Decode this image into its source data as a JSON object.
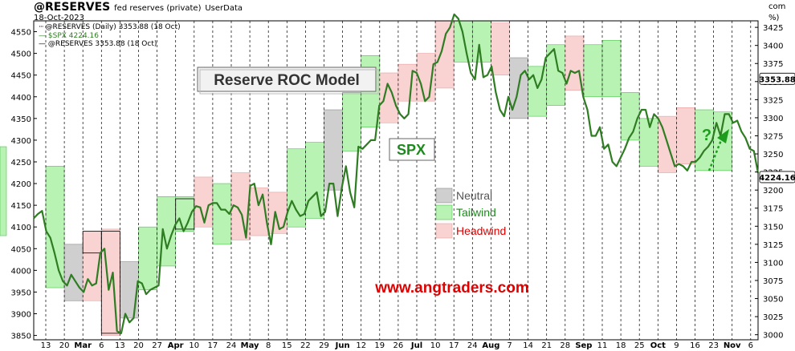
{
  "header": {
    "symbol": "@RESERVES",
    "description": "fed reserves (private)",
    "source": "UserData",
    "date": "18-Oct-2023",
    "right_top": "com",
    "right_pct": "%)",
    "legend_reserves": "@RESERVES (Daily) 3353.88 (18 Oct)",
    "legend_spx": "$SPX 4224.16",
    "legend_reserves2": "@RESERVES 3353.88 (18 Oct)"
  },
  "annotations": {
    "model_title": "Reserve ROC Model",
    "spx_label": "SPX",
    "question_mark": "?",
    "website": "www.angtraders.com"
  },
  "legend": {
    "neutral": "Neutral",
    "tailwind": "Tailwind",
    "headwind": "Headwind"
  },
  "colors": {
    "tailwind_fill": "#b9f3b4",
    "tailwind_edge": "#49c549",
    "headwind_fill": "#f9d2d2",
    "headwind_edge": "#e7a0a0",
    "neutral_fill": "#cfcfcf",
    "neutral_edge": "#8c8c8c",
    "spx_line": "#2f7d22",
    "arrow": "#1e9c1e",
    "website": "#e00000",
    "headwind_text": "#e00000",
    "tailwind_text": "#1d8a1d"
  },
  "chart_data": {
    "type": "line",
    "title": "@RESERVES fed reserves (private) UserData",
    "x_ticks": [
      "13",
      "20",
      "Mar",
      "6",
      "13",
      "20",
      "27",
      "Apr",
      "10",
      "17",
      "24",
      "May",
      "8",
      "15",
      "22",
      "29",
      "Jun",
      "12",
      "19",
      "26",
      "Jul",
      "10",
      "17",
      "24",
      "Aug",
      "7",
      "14",
      "21",
      "28",
      "Sep",
      "11",
      "18",
      "25",
      "Oct",
      "9",
      "16",
      "23",
      "Nov",
      "6"
    ],
    "y_left_ticks": [
      3850,
      3900,
      3950,
      4000,
      4050,
      4100,
      4150,
      4200,
      4250,
      4300,
      4350,
      4400,
      4450,
      4500,
      4550
    ],
    "y_right_ticks": [
      3000,
      3025,
      3050,
      3075,
      3100,
      3125,
      3150,
      3175,
      3200,
      3225,
      3250,
      3275,
      3300,
      3325,
      3350,
      3375,
      3400,
      3425
    ],
    "ylim_left": [
      3840,
      4575
    ],
    "ylim_right": [
      2993,
      3434
    ],
    "last_values": {
      "spx": "4224.16",
      "reserves": "3353.88"
    },
    "series": [
      {
        "name": "$SPX",
        "x": [
          0,
          1,
          2,
          3,
          4,
          5,
          6,
          7,
          8,
          9,
          10,
          11,
          12,
          13,
          14,
          15,
          16,
          17,
          18,
          19,
          20,
          21,
          22,
          23,
          24,
          25,
          26,
          27,
          28,
          29,
          30,
          31,
          32,
          33,
          34,
          35,
          36,
          37,
          38,
          39,
          40,
          41,
          42,
          43,
          44,
          45,
          46,
          47,
          48,
          49,
          50,
          51,
          52,
          53,
          54,
          55,
          56,
          57,
          58,
          59,
          60,
          61,
          62,
          63,
          64,
          65,
          66,
          67,
          68,
          69,
          70,
          71,
          72,
          73,
          74,
          75,
          76,
          77,
          78,
          79,
          80,
          81,
          82,
          83,
          84,
          85,
          86,
          87,
          88,
          89,
          90,
          91,
          92,
          93,
          94,
          95,
          96,
          97,
          98,
          99,
          100,
          101,
          102,
          103,
          104,
          105,
          106,
          107,
          108,
          109,
          110,
          111,
          112,
          113,
          114,
          115,
          116,
          117,
          118,
          119,
          120,
          121,
          122,
          123,
          124,
          125,
          126,
          127,
          128,
          129,
          130,
          131,
          132,
          133,
          134,
          135,
          136,
          137,
          138,
          139,
          140,
          141,
          142,
          143,
          144,
          145,
          146,
          147,
          148,
          149,
          150,
          151,
          152,
          153,
          154,
          155,
          156,
          157,
          158,
          159,
          160,
          161,
          162,
          163,
          164,
          165,
          166,
          167,
          168,
          169,
          170,
          171,
          172,
          173,
          174
        ],
        "values": [
          4120,
          4130,
          4137,
          4090,
          4075,
          4040,
          4000,
          3975,
          3965,
          3990,
          3975,
          3960,
          3950,
          3980,
          3965,
          3970,
          4040,
          4050,
          3955,
          3995,
          3860,
          3855,
          3900,
          3880,
          3890,
          3975,
          3970,
          3945,
          3955,
          3960,
          3965,
          4095,
          4050,
          4080,
          4105,
          4120,
          4090,
          4110,
          4135,
          4148,
          4145,
          4110,
          4150,
          4155,
          4155,
          4140,
          4140,
          4130,
          4150,
          4145,
          4128,
          4075,
          4195,
          4200,
          4150,
          4175,
          4110,
          4060,
          4135,
          4095,
          4100,
          4135,
          4160,
          4140,
          4125,
          4130,
          4160,
          4170,
          4180,
          4125,
          4135,
          4200,
          4200,
          4125,
          4190,
          4240,
          4180,
          4145,
          4285,
          4280,
          4290,
          4300,
          4300,
          4380,
          4390,
          4430,
          4410,
          4380,
          4360,
          4350,
          4360,
          4460,
          4455,
          4430,
          4390,
          4400,
          4475,
          4480,
          4505,
          4545,
          4560,
          4590,
          4580,
          4550,
          4500,
          4455,
          4440,
          4520,
          4445,
          4450,
          4470,
          4410,
          4370,
          4355,
          4400,
          4370,
          4400,
          4450,
          4460,
          4440,
          4450,
          4420,
          4440,
          4490,
          4500,
          4510,
          4460,
          4455,
          4430,
          4460,
          4455,
          4460,
          4400,
          4370,
          4310,
          4310,
          4330,
          4280,
          4290,
          4250,
          4240,
          4260,
          4280,
          4305,
          4320,
          4350,
          4370,
          4370,
          4330,
          4360,
          4350,
          4330,
          4300,
          4270,
          4240,
          4245,
          4240,
          4230,
          4250,
          4250,
          4260,
          4275,
          4285,
          4300,
          4340,
          4310,
          4360,
          4360,
          4340,
          4345,
          4320,
          4305,
          4280,
          4275,
          4224
        ]
      }
    ],
    "regimes": [
      {
        "from": 0,
        "to": 1,
        "type": "tailwind",
        "low": 3960,
        "high": 4240
      },
      {
        "from": 1,
        "to": 2,
        "type": "neutral",
        "low": 3930,
        "high": 4060
      },
      {
        "from": 2,
        "to": 3,
        "type": "headwind",
        "low": 3930,
        "high": 4090
      },
      {
        "from": 3,
        "to": 4,
        "type": "headwind",
        "low": 3850,
        "high": 4095
      },
      {
        "from": 4,
        "to": 5,
        "type": "neutral",
        "low": 3890,
        "high": 4020
      },
      {
        "from": 5,
        "to": 6,
        "type": "tailwind",
        "low": 3955,
        "high": 4100
      },
      {
        "from": 6,
        "to": 7,
        "type": "tailwind",
        "low": 4010,
        "high": 4170
      },
      {
        "from": 7,
        "to": 8,
        "type": "tailwind",
        "low": 4090,
        "high": 4170
      },
      {
        "from": 8,
        "to": 9,
        "type": "headwind",
        "low": 4100,
        "high": 4215
      },
      {
        "from": 9,
        "to": 10,
        "type": "tailwind",
        "low": 4060,
        "high": 4200
      },
      {
        "from": 10,
        "to": 11,
        "type": "headwind",
        "low": 4070,
        "high": 4225
      },
      {
        "from": 11,
        "to": 12,
        "type": "headwind",
        "low": 4080,
        "high": 4190
      },
      {
        "from": 12,
        "to": 13,
        "type": "headwind",
        "low": 4085,
        "high": 4180
      },
      {
        "from": 13,
        "to": 14,
        "type": "tailwind",
        "low": 4100,
        "high": 4280
      },
      {
        "from": 14,
        "to": 15,
        "type": "tailwind",
        "low": 4120,
        "high": 4295
      },
      {
        "from": 15,
        "to": 16,
        "type": "neutral",
        "low": 4185,
        "high": 4370
      },
      {
        "from": 16,
        "to": 17,
        "type": "tailwind",
        "low": 4275,
        "high": 4410
      },
      {
        "from": 17,
        "to": 18,
        "type": "tailwind",
        "low": 4330,
        "high": 4495
      },
      {
        "from": 18,
        "to": 19,
        "type": "headwind",
        "low": 4340,
        "high": 4455
      },
      {
        "from": 19,
        "to": 20,
        "type": "headwind",
        "low": 4390,
        "high": 4475
      },
      {
        "from": 20,
        "to": 21,
        "type": "headwind",
        "low": 4390,
        "high": 4500
      },
      {
        "from": 21,
        "to": 22,
        "type": "headwind",
        "low": 4420,
        "high": 4590
      },
      {
        "from": 22,
        "to": 23,
        "type": "tailwind",
        "low": 4480,
        "high": 4600
      },
      {
        "from": 23,
        "to": 24,
        "type": "tailwind",
        "low": 4480,
        "high": 4590
      },
      {
        "from": 24,
        "to": 25,
        "type": "headwind",
        "low": 4450,
        "high": 4570
      },
      {
        "from": 25,
        "to": 26,
        "type": "neutral",
        "low": 4350,
        "high": 4490
      },
      {
        "from": 26,
        "to": 27,
        "type": "tailwind",
        "low": 4355,
        "high": 4470
      },
      {
        "from": 27,
        "to": 28,
        "type": "tailwind",
        "low": 4380,
        "high": 4520
      },
      {
        "from": 28,
        "to": 29,
        "type": "headwind",
        "low": 4415,
        "high": 4540
      },
      {
        "from": 29,
        "to": 30,
        "type": "tailwind",
        "low": 4400,
        "high": 4520
      },
      {
        "from": 30,
        "to": 31,
        "type": "tailwind",
        "low": 4400,
        "high": 4530
      },
      {
        "from": 31,
        "to": 32,
        "type": "tailwind",
        "low": 4300,
        "high": 4410
      },
      {
        "from": 32,
        "to": 33,
        "type": "tailwind",
        "low": 4240,
        "high": 4350
      },
      {
        "from": 33,
        "to": 34,
        "type": "headwind",
        "low": 4225,
        "high": 4355
      },
      {
        "from": 34,
        "to": 35,
        "type": "headwind",
        "low": 4245,
        "high": 4375
      },
      {
        "from": 35,
        "to": 36,
        "type": "tailwind",
        "low": 4230,
        "high": 4370
      },
      {
        "from": 36,
        "to": 37,
        "type": "tailwind",
        "low": 4230,
        "high": 4365
      }
    ]
  }
}
